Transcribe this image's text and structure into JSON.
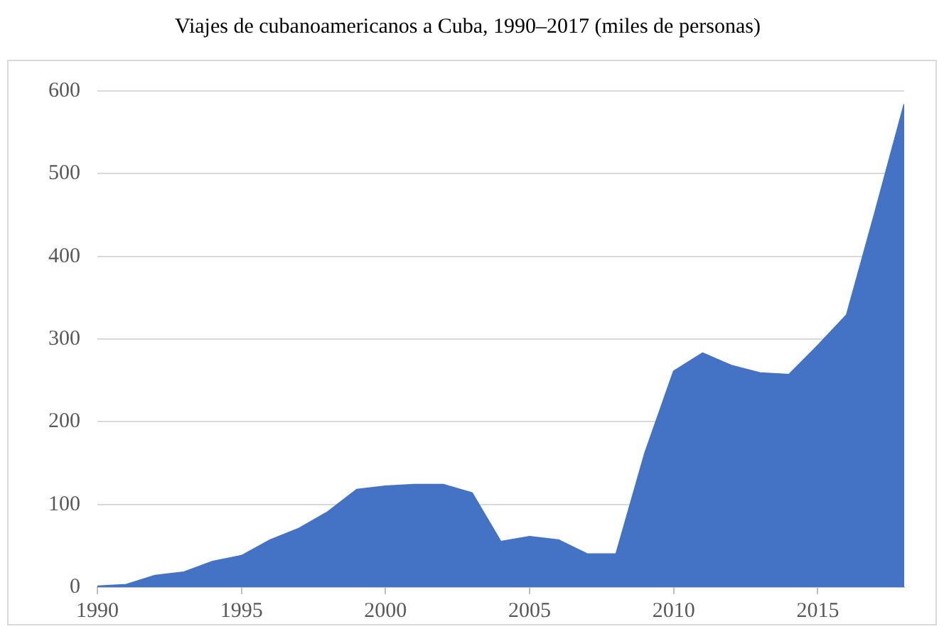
{
  "chart_data": {
    "type": "area",
    "title": "Viajes de cubanoamericanos a Cuba, 1990–2017 (miles de personas)",
    "x": [
      1990,
      1991,
      1992,
      1993,
      1994,
      1995,
      1996,
      1997,
      1998,
      1999,
      2000,
      2001,
      2002,
      2003,
      2004,
      2005,
      2006,
      2007,
      2008,
      2009,
      2010,
      2011,
      2012,
      2013,
      2014,
      2015,
      2016,
      2017,
      2018
    ],
    "series": [
      {
        "color": "#4472c4",
        "values": [
          1,
          3,
          14,
          18,
          31,
          38,
          57,
          71,
          91,
          118,
          122,
          124,
          124,
          114,
          55,
          61,
          57,
          40,
          40,
          162,
          261,
          283,
          268,
          259,
          257,
          292,
          329,
          455,
          584
        ]
      }
    ],
    "xlim": [
      1990,
      2018
    ],
    "xticks": [
      1990,
      1995,
      2000,
      2005,
      2010,
      2015
    ],
    "ylim": [
      0,
      600
    ],
    "yticks": [
      0,
      100,
      200,
      300,
      400,
      500,
      600
    ],
    "grid": "y",
    "legend": false
  }
}
